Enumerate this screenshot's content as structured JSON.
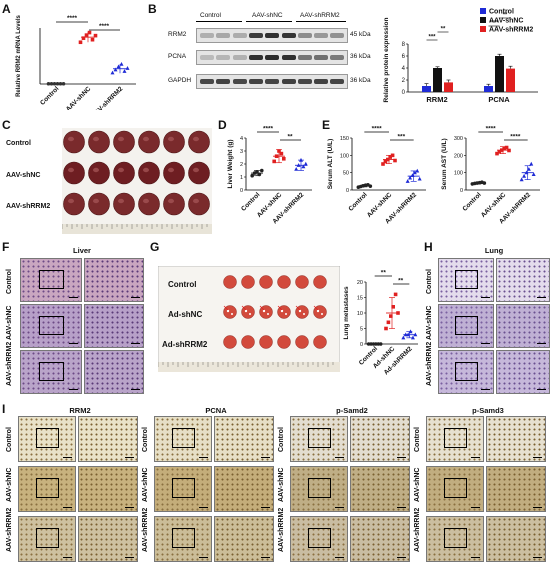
{
  "panel_labels": [
    "A",
    "B",
    "C",
    "D",
    "E",
    "F",
    "G",
    "H",
    "I"
  ],
  "groups": [
    "Control",
    "AAV-shNC",
    "AAV-shRRM2"
  ],
  "ad_groups": [
    "Control",
    "Ad-shNC",
    "Ad-shRRM2"
  ],
  "panelA": {
    "ylabel": "Relative RRM2 mRNA Levels",
    "sig": [
      "****",
      "****"
    ]
  },
  "panelB": {
    "blot_headers": [
      "Control",
      "AAV-shNC",
      "AAV-shRRM2"
    ],
    "bands": [
      {
        "name": "RRM2",
        "kda": "45 kDa"
      },
      {
        "name": "PCNA",
        "kda": "36 kDa"
      },
      {
        "name": "GAPDH",
        "kda": "36 kDa"
      }
    ],
    "legend": [
      "Control",
      "AAV-shNC",
      "AAV-shRRM2"
    ],
    "colors": [
      "#1f2bd6",
      "#111111",
      "#e02020"
    ],
    "sig_rrm2": [
      "***",
      "**"
    ],
    "sig_pcna": [
      "****",
      "**"
    ]
  },
  "panelC": {
    "rows": [
      "Control",
      "AAV-shNC",
      "AAV-shRRM2"
    ]
  },
  "panelD": {
    "sig": [
      "****",
      "**"
    ]
  },
  "panelE": {
    "sig_alt": [
      "****",
      "***"
    ],
    "sig_ast": [
      "****",
      "****"
    ]
  },
  "panelF": {
    "title": "Liver"
  },
  "panelG": {
    "rows": [
      "Control",
      "Ad-shNC",
      "Ad-shRRM2"
    ],
    "ylabel": "Lung metastases",
    "sig": [
      "**",
      "**"
    ]
  },
  "panelH": {
    "title": "Lung"
  },
  "panelI": {
    "titles": [
      "RRM2",
      "PCNA",
      "p-Samd2",
      "p-Samd3"
    ]
  },
  "chart_data": [
    {
      "id": "A",
      "type": "scatter",
      "categories": [
        "Control",
        "AAV-shNC",
        "AAV-shRRM2"
      ],
      "ylabel": "Relative RRM2 mRNA Levels",
      "means": [
        0.05,
        9.2,
        3.0
      ],
      "sd": [
        0.05,
        1.0,
        0.9
      ],
      "points": [
        [
          0.05,
          0.05,
          0.05,
          0.05,
          0.05,
          0.05
        ],
        [
          8.2,
          9.0,
          9.6,
          10.1,
          8.7,
          9.5
        ],
        [
          2.2,
          2.8,
          3.4,
          3.9,
          2.5,
          3.1
        ]
      ],
      "color": [
        "#333333",
        "#e02020",
        "#1f2bd6"
      ]
    },
    {
      "id": "B",
      "type": "bar",
      "categories": [
        "RRM2",
        "PCNA"
      ],
      "ylabel": "Relative protein expression",
      "ylim": [
        0,
        8
      ],
      "yticks": [
        0,
        2,
        4,
        6,
        8
      ],
      "series": [
        {
          "name": "Control",
          "values": [
            1.0,
            1.0
          ],
          "err": [
            0.4,
            0.3
          ]
        },
        {
          "name": "AAV-shNC",
          "values": [
            4.0,
            6.0
          ],
          "err": [
            0.2,
            0.3
          ]
        },
        {
          "name": "AAV-shRRM2",
          "values": [
            1.6,
            3.9
          ],
          "err": [
            0.4,
            0.4
          ]
        }
      ]
    },
    {
      "id": "D",
      "type": "scatter",
      "categories": [
        "Control",
        "AAV-shNC",
        "AAV-shRRM2"
      ],
      "ylabel": "Liver Weight (g)",
      "ylim": [
        0,
        4
      ],
      "yticks": [
        0,
        1,
        2,
        3,
        4
      ],
      "means": [
        1.3,
        2.6,
        1.9
      ],
      "sd": [
        0.2,
        0.5,
        0.4
      ],
      "points": [
        [
          1.1,
          1.3,
          1.4,
          1.2,
          1.5
        ],
        [
          2.2,
          2.6,
          3.0,
          2.8,
          2.4
        ],
        [
          1.6,
          1.9,
          2.3,
          1.8,
          2.0
        ]
      ]
    },
    {
      "id": "E1",
      "type": "scatter",
      "categories": [
        "Control",
        "AAV-shNC",
        "AAV-shRRM2"
      ],
      "ylabel": "Serum ALT (U/L)",
      "ylim": [
        0,
        150
      ],
      "yticks": [
        0,
        50,
        100,
        150
      ],
      "means": [
        12,
        88,
        40
      ],
      "sd": [
        3,
        12,
        15
      ],
      "points": [
        [
          8,
          10,
          12,
          14,
          15,
          11
        ],
        [
          75,
          82,
          88,
          95,
          100,
          85
        ],
        [
          25,
          35,
          42,
          50,
          55,
          32
        ]
      ]
    },
    {
      "id": "E2",
      "type": "scatter",
      "categories": [
        "Control",
        "AAV-shNC",
        "AAV-shRRM2"
      ],
      "ylabel": "Serum AST (U/L)",
      "ylim": [
        0,
        300
      ],
      "yticks": [
        0,
        100,
        200,
        300
      ],
      "means": [
        40,
        230,
        100
      ],
      "sd": [
        5,
        20,
        40
      ],
      "points": [
        [
          35,
          38,
          40,
          42,
          45,
          40
        ],
        [
          210,
          220,
          230,
          240,
          245,
          228
        ],
        [
          60,
          80,
          100,
          120,
          150,
          90
        ]
      ]
    },
    {
      "id": "G",
      "type": "scatter",
      "categories": [
        "Control",
        "Ad-shNC",
        "Ad-shRRM2"
      ],
      "ylabel": "Lung metastases",
      "ylim": [
        0,
        20
      ],
      "yticks": [
        0,
        5,
        10,
        15,
        20
      ],
      "means": [
        0,
        10,
        3
      ],
      "sd": [
        0,
        5,
        1
      ],
      "points": [
        [
          0,
          0,
          0,
          0,
          0,
          0
        ],
        [
          5,
          7,
          9,
          12,
          16,
          10
        ],
        [
          2,
          3,
          3,
          4,
          2,
          3
        ]
      ]
    }
  ]
}
